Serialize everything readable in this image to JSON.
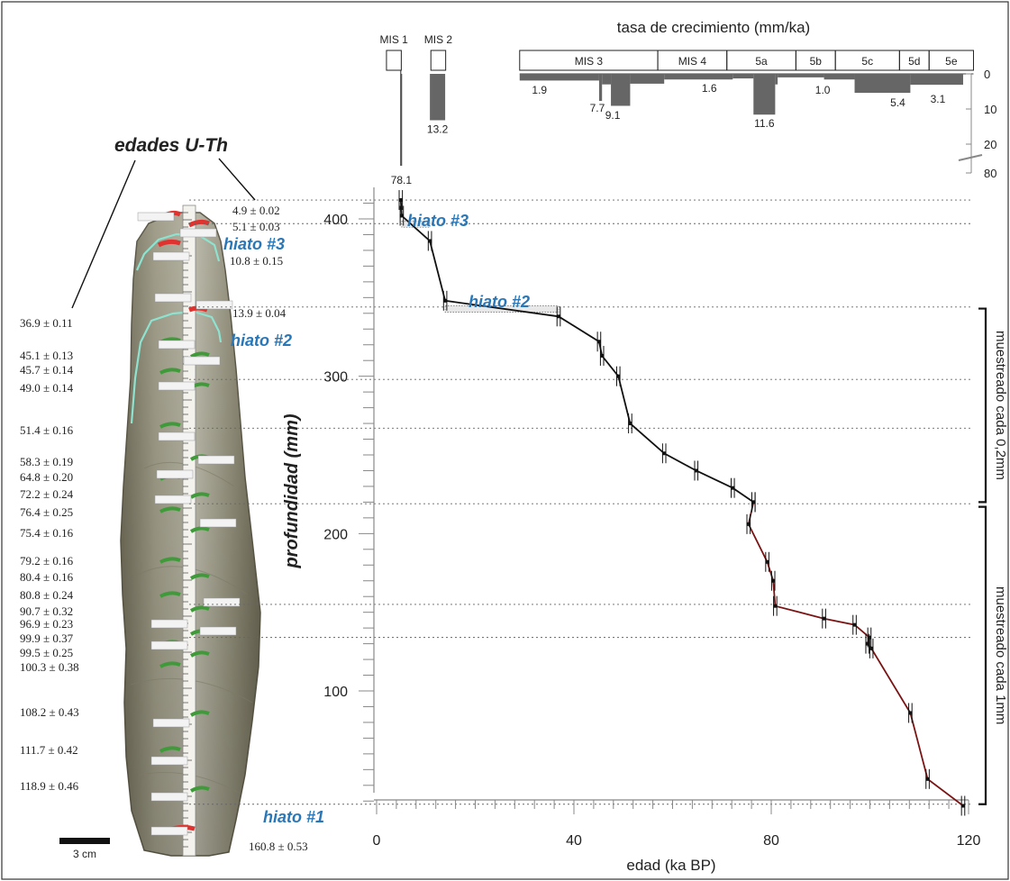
{
  "chart_data": {
    "type": "line",
    "xlabel": "edad (ka BP)",
    "ylabel": "profundidad (mm)",
    "xlim": [
      0,
      124
    ],
    "ylim": [
      24,
      418
    ],
    "x_ticks": [
      "0",
      "40",
      "80",
      "120"
    ],
    "y_ticks": [
      "100",
      "200",
      "300",
      "400"
    ],
    "grid": "dotted horizontal lines at hiatus / sampling boundaries",
    "series": [
      {
        "color": "#111111",
        "points": [
          [
            4.9,
            412
          ],
          [
            5.1,
            402
          ],
          [
            10.8,
            386
          ],
          [
            13.9,
            348
          ],
          [
            36.9,
            338
          ],
          [
            45.1,
            322
          ],
          [
            45.7,
            313
          ],
          [
            49.0,
            300
          ],
          [
            51.4,
            270
          ],
          [
            58.3,
            251
          ],
          [
            64.8,
            240
          ],
          [
            72.2,
            229
          ],
          [
            76.4,
            220
          ]
        ]
      },
      {
        "color": "#7a1414",
        "points": [
          [
            76.4,
            220
          ],
          [
            75.4,
            206
          ],
          [
            79.2,
            182
          ],
          [
            80.4,
            170
          ],
          [
            80.8,
            154
          ],
          [
            90.7,
            146
          ],
          [
            96.9,
            142
          ],
          [
            99.9,
            134
          ],
          [
            99.5,
            130
          ],
          [
            100.3,
            127
          ],
          [
            108.2,
            86
          ],
          [
            111.7,
            44
          ],
          [
            118.9,
            27
          ]
        ]
      }
    ],
    "hiatus_labels": [
      "hiato #3",
      "hiato #2",
      "hiato #1"
    ],
    "hiatus_boxes": [
      {
        "label": "hiato #3",
        "x0": 5.1,
        "x1": 10.8,
        "depth": 397
      },
      {
        "label": "hiato #2",
        "x0": 13.9,
        "x1": 36.9,
        "depth": 343
      }
    ],
    "reference_lines_depth": [
      412,
      397,
      344,
      298,
      267,
      219,
      155,
      134,
      28
    ],
    "sampling_brackets": [
      {
        "label": "muestreado cada 0,2mm",
        "from": 343,
        "to": 220
      },
      {
        "label": "muestreado cada 1mm",
        "from": 217,
        "to": 28
      }
    ],
    "growth_rate": {
      "title": "tasa de crecimiento (mm/ka)",
      "right_ticks": [
        "0",
        "10",
        "20",
        "80"
      ],
      "stages": [
        {
          "label": "MIS 1",
          "x0": 2,
          "x1": 5
        },
        {
          "label": "MIS 2",
          "x0": 11,
          "x1": 14
        },
        {
          "label": "MIS 3",
          "x0": 29,
          "x1": 57
        },
        {
          "label": "MIS 4",
          "x0": 57,
          "x1": 71
        },
        {
          "label": "5a",
          "x0": 71,
          "x1": 85
        },
        {
          "label": "5b",
          "x0": 85,
          "x1": 93
        },
        {
          "label": "5c",
          "x0": 93,
          "x1": 106
        },
        {
          "label": "5d",
          "x0": 106,
          "x1": 112
        },
        {
          "label": "5e",
          "x0": 112,
          "x1": 121
        }
      ],
      "bars": [
        {
          "label": "78.1",
          "x0": 4.9,
          "x1": 5.1,
          "value": 78.1
        },
        {
          "label": "13.2",
          "x0": 10.8,
          "x1": 13.9,
          "value": 13.2
        },
        {
          "label": "1.9",
          "x0": 29,
          "x1": 45.1,
          "value": 1.9
        },
        {
          "label": "7.7",
          "x0": 45.1,
          "x1": 45.7,
          "value": 7.7
        },
        {
          "label": "",
          "x0": 45.7,
          "x1": 47.5,
          "value": 3
        },
        {
          "label": "9.1",
          "x0": 47.5,
          "x1": 51.4,
          "value": 9.1
        },
        {
          "label": "",
          "x0": 51.4,
          "x1": 58.3,
          "value": 2.8
        },
        {
          "label": "1.6",
          "x0": 58.3,
          "x1": 72.2,
          "value": 1.6
        },
        {
          "label": "",
          "x0": 72.2,
          "x1": 76.4,
          "value": 1.3
        },
        {
          "label": "11.6",
          "x0": 76.4,
          "x1": 80.8,
          "value": 11.6
        },
        {
          "label": "",
          "x0": 80.8,
          "x1": 81.3,
          "value": 3
        },
        {
          "label": "1.0",
          "x0": 81.3,
          "x1": 90.7,
          "value": 1.0
        },
        {
          "label": "",
          "x0": 90.7,
          "x1": 96.9,
          "value": 1.6
        },
        {
          "label": "5.4",
          "x0": 96.9,
          "x1": 108.2,
          "value": 5.4
        },
        {
          "label": "3.1",
          "x0": 108.2,
          "x1": 118.9,
          "value": 3.1
        }
      ]
    },
    "uth_ages": {
      "title": "edades U-Th",
      "scale_bar": "3 cm",
      "left_labels": [
        "36.9 ± 0.11",
        "45.1 ± 0.13",
        "45.7 ± 0.14",
        "49.0 ± 0.14",
        "51.4 ± 0.16",
        "58.3 ± 0.19",
        "64.8 ± 0.20",
        "72.2 ± 0.24",
        "76.4 ± 0.25",
        "75.4 ± 0.16",
        "79.2 ± 0.16",
        "80.4 ± 0.16",
        "80.8 ± 0.24",
        "90.7 ± 0.32",
        "96.9 ± 0.23",
        "99.9 ± 0.37",
        "99.5 ± 0.25",
        "100.3 ± 0.38",
        "108.2 ± 0.43",
        "111.7 ± 0.42",
        "118.9 ± 0.46"
      ],
      "right_labels": [
        "4.9 ± 0.02",
        "5.1 ± 0.03",
        "10.8 ± 0.15",
        "13.9 ± 0.04",
        "160.8 ± 0.53"
      ]
    }
  }
}
